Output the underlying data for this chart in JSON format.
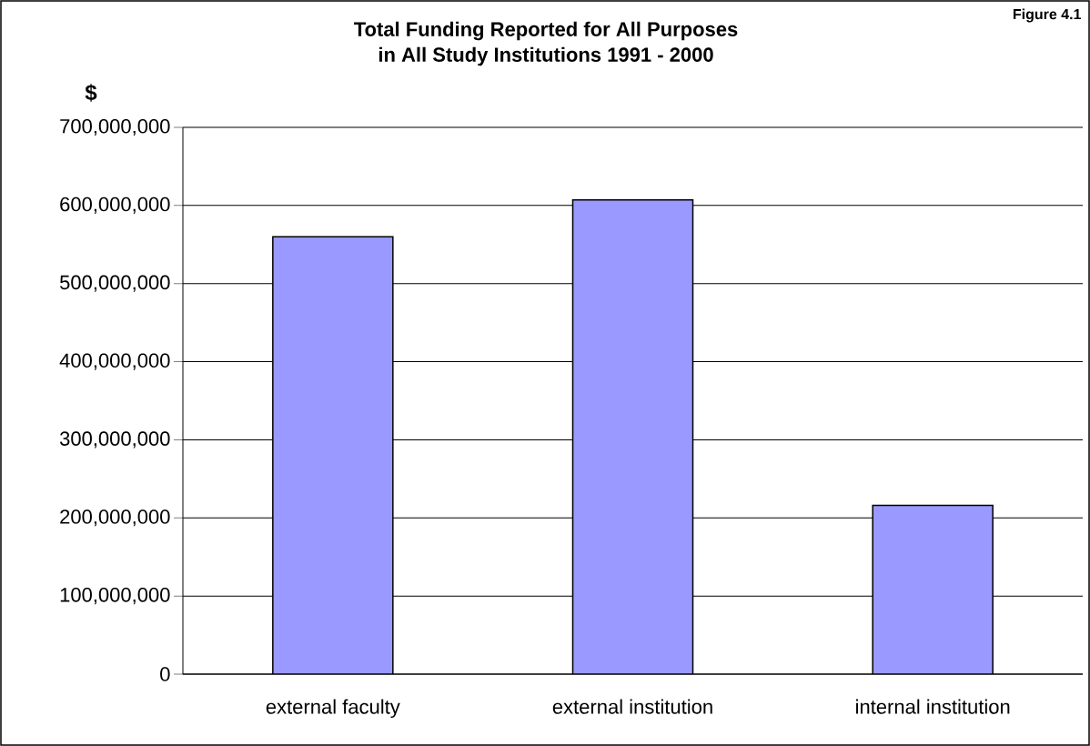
{
  "chart_data": {
    "type": "bar",
    "title": "Total Funding Reported for All Purposes\nin All Study Institutions 1991 - 2000",
    "ylabel": "$",
    "annotations": [
      "Figure 4.1"
    ],
    "categories": [
      "external faculty",
      "external institution",
      "internal institution"
    ],
    "values": [
      560000000,
      607000000,
      216000000
    ],
    "color": "#9999ff",
    "ylim": [
      0,
      700000000
    ],
    "yticks": [
      {
        "value": 0,
        "label": "0"
      },
      {
        "value": 100000000,
        "label": "100,000,000"
      },
      {
        "value": 200000000,
        "label": "200,000,000"
      },
      {
        "value": 300000000,
        "label": "300,000,000"
      },
      {
        "value": 400000000,
        "label": "400,000,000"
      },
      {
        "value": 500000000,
        "label": "500,000,000"
      },
      {
        "value": 600000000,
        "label": "600,000,000"
      },
      {
        "value": 700000000,
        "label": "700,000,000"
      }
    ],
    "grid": "y"
  }
}
